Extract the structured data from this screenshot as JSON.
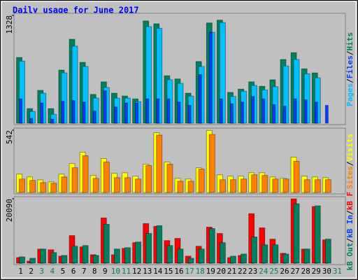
{
  "chart_data": [
    {
      "type": "bar",
      "title": "Daily usage for June 2017",
      "legend_separator": "/",
      "categories": [
        "1",
        "2",
        "3",
        "4",
        "5",
        "6",
        "7",
        "8",
        "9",
        "10",
        "11",
        "12",
        "13",
        "14",
        "15",
        "16",
        "17",
        "18",
        "19",
        "20",
        "21",
        "22",
        "23",
        "24",
        "25",
        "26",
        "27",
        "28",
        "29",
        "30",
        "31"
      ],
      "category_colors": [
        "#000000",
        "#000000",
        "#00805c",
        "#00805c",
        "#000000",
        "#000000",
        "#000000",
        "#000000",
        "#000000",
        "#00805c",
        "#00805c",
        "#000000",
        "#000000",
        "#000000",
        "#000000",
        "#000000",
        "#00805c",
        "#00805c",
        "#000000",
        "#000000",
        "#000000",
        "#000000",
        "#000000",
        "#00805c",
        "#00805c",
        "#000000",
        "#000000",
        "#000000",
        "#000000",
        "#000000",
        "#00805c"
      ],
      "ylim": [
        0,
        1328
      ],
      "yticks": [
        1328
      ],
      "series": [
        {
          "name": "Hits",
          "color": "#00805c",
          "values": [
            810,
            180,
            405,
            180,
            655,
            1035,
            750,
            355,
            510,
            370,
            335,
            300,
            1260,
            1225,
            585,
            545,
            370,
            760,
            1235,
            1270,
            380,
            420,
            510,
            455,
            535,
            785,
            870,
            670,
            620,
            0,
            0
          ]
        },
        {
          "name": "Files",
          "color": "#0040ff",
          "values": [
            300,
            60,
            250,
            50,
            270,
            280,
            260,
            150,
            400,
            200,
            250,
            250,
            300,
            300,
            300,
            260,
            220,
            600,
            1120,
            300,
            240,
            260,
            330,
            300,
            230,
            210,
            300,
            290,
            260,
            220,
            0
          ]
        },
        {
          "name": "Pages",
          "color": "#00c0ff",
          "values": [
            765,
            145,
            370,
            110,
            620,
            950,
            700,
            310,
            440,
            310,
            310,
            265,
            1190,
            1170,
            535,
            490,
            335,
            700,
            1120,
            1240,
            330,
            395,
            465,
            410,
            450,
            705,
            785,
            610,
            560,
            0,
            0
          ]
        }
      ]
    },
    {
      "type": "bar",
      "legend_separator": "/",
      "ylim": [
        0,
        542
      ],
      "yticks": [
        542
      ],
      "series": [
        {
          "name": "Visits",
          "color": "#ffff00",
          "values": [
            160,
            135,
            110,
            92,
            160,
            252,
            351,
            148,
            296,
            166,
            172,
            142,
            246,
            520,
            265,
            123,
            117,
            215,
            540,
            154,
            142,
            142,
            172,
            172,
            135,
            123,
            308,
            142,
            135,
            129,
            0
          ]
        },
        {
          "name": "Sites",
          "color": "#ff8000",
          "values": [
            117,
            105,
            86,
            80,
            135,
            215,
            320,
            123,
            265,
            129,
            129,
            117,
            234,
            499,
            246,
            98,
            98,
            203,
            505,
            111,
            111,
            117,
            154,
            148,
            117,
            117,
            271,
            111,
            111,
            111,
            0
          ]
        }
      ]
    },
    {
      "type": "bar",
      "legend_separator": "/",
      "ylim": [
        0,
        20090
      ],
      "yticks": [
        20090
      ],
      "series": [
        {
          "name": "kB F",
          "color": "#ff0000",
          "values": [
            1770,
            660,
            4420,
            4200,
            2210,
            8620,
            5080,
            2650,
            14140,
            2650,
            4640,
            6410,
            12380,
            11490,
            7070,
            7740,
            2210,
            5300,
            11270,
            9280,
            1770,
            2430,
            15470,
            11050,
            7510,
            3090,
            20090,
            4420,
            17680,
            7290,
            0
          ]
        },
        {
          "name": "kB In",
          "color": "#0040ff",
          "values": [
            50,
            50,
            50,
            50,
            50,
            50,
            50,
            50,
            50,
            50,
            50,
            50,
            50,
            50,
            50,
            50,
            50,
            50,
            50,
            50,
            50,
            50,
            50,
            50,
            50,
            50,
            50,
            50,
            50,
            50,
            0
          ]
        },
        {
          "name": "kB Out",
          "color": "#00805c",
          "values": [
            1990,
            1550,
            4420,
            3310,
            2430,
            5300,
            5520,
            2430,
            12150,
            4420,
            4860,
            6630,
            9280,
            11710,
            5520,
            4420,
            1550,
            4420,
            10830,
            6410,
            2210,
            2870,
            8180,
            5750,
            5750,
            2870,
            18560,
            4420,
            17900,
            7510,
            0
          ]
        }
      ]
    }
  ]
}
